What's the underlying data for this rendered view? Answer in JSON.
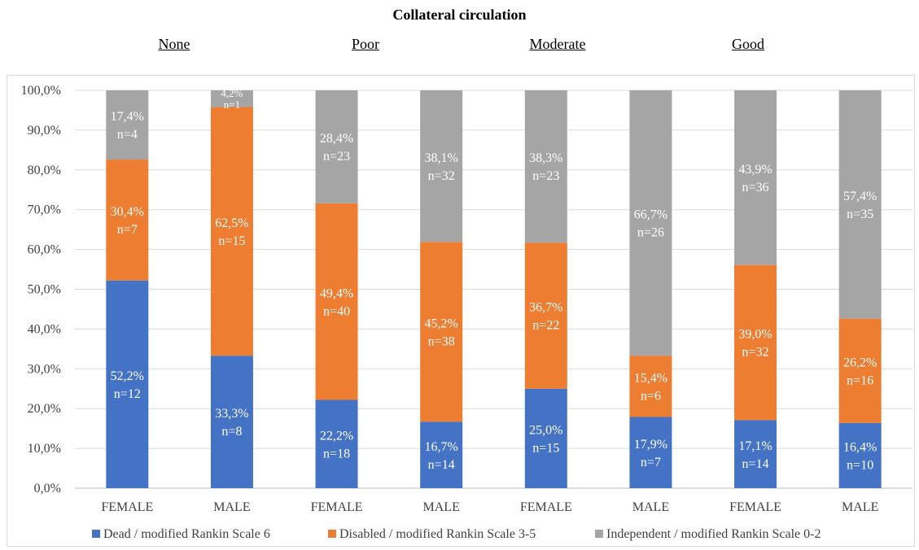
{
  "chart_data": {
    "type": "bar",
    "stacked": true,
    "title": "Collateral circulation",
    "groups": [
      "None",
      "Poor",
      "Moderate",
      "Good"
    ],
    "categories": [
      "FEMALE",
      "MALE",
      "FEMALE",
      "MALE",
      "FEMALE",
      "MALE",
      "FEMALE",
      "MALE"
    ],
    "series": [
      {
        "name": "Dead / modified Rankin Scale 6",
        "color": "#4472c4",
        "values": [
          52.2,
          33.3,
          22.2,
          16.7,
          25.0,
          17.9,
          17.1,
          16.4
        ],
        "labels": [
          "52,2%",
          "33,3%",
          "22,2%",
          "16,7%",
          "25,0%",
          "17,9%",
          "17,1%",
          "16,4%"
        ],
        "n": [
          "n=12",
          "n=8",
          "n=18",
          "n=14",
          "n=15",
          "n=7",
          "n=14",
          "n=10"
        ]
      },
      {
        "name": "Disabled / modified Rankin Scale 3-5",
        "color": "#ed7d31",
        "values": [
          30.4,
          62.5,
          49.4,
          45.2,
          36.7,
          15.4,
          39.0,
          26.2
        ],
        "labels": [
          "30,4%",
          "62,5%",
          "49,4%",
          "45,2%",
          "36,7%",
          "15,4%",
          "39,0%",
          "26,2%"
        ],
        "n": [
          "n=7",
          "n=15",
          "n=40",
          "n=38",
          "n=22",
          "n=6",
          "n=32",
          "n=16"
        ]
      },
      {
        "name": "Independent / modified Rankin Scale 0-2",
        "color": "#a5a5a5",
        "values": [
          17.4,
          4.2,
          28.4,
          38.1,
          38.3,
          66.7,
          43.9,
          57.4
        ],
        "labels": [
          "17,4%",
          "4,2%",
          "28,4%",
          "38,1%",
          "38,3%",
          "66,7%",
          "43,9%",
          "57,4%"
        ],
        "n": [
          "n=4",
          "n=1",
          "n=23",
          "n=32",
          "n=23",
          "n=26",
          "n=36",
          "n=35"
        ]
      }
    ],
    "ylim": [
      0,
      100
    ],
    "yticks": [
      "0,0%",
      "10,0%",
      "20,0%",
      "30,0%",
      "40,0%",
      "50,0%",
      "60,0%",
      "70,0%",
      "80,0%",
      "90,0%",
      "100,0%"
    ],
    "grid": true,
    "legend": "bottom"
  }
}
